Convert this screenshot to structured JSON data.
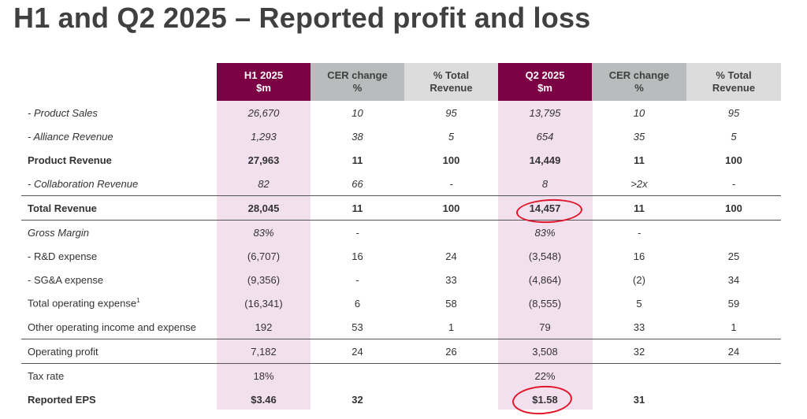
{
  "title": "H1 and Q2 2025 – Reported profit and loss",
  "columns": {
    "h1": "H1 2025\n$m",
    "h1_cer": "CER change\n%",
    "h1_pct": "% Total\nRevenue",
    "q2": "Q2 2025\n$m",
    "q2_cer": "CER change\n%",
    "q2_pct": "% Total\nRevenue"
  },
  "rows": [
    {
      "label": "- Product Sales",
      "h1": "26,670",
      "h1_cer": "10",
      "h1_pct": "95",
      "q2": "13,795",
      "q2_cer": "10",
      "q2_pct": "95"
    },
    {
      "label": "- Alliance Revenue",
      "h1": "1,293",
      "h1_cer": "38",
      "h1_pct": "5",
      "q2": "654",
      "q2_cer": "35",
      "q2_pct": "5"
    },
    {
      "label": "Product Revenue",
      "h1": "27,963",
      "h1_cer": "11",
      "h1_pct": "100",
      "q2": "14,449",
      "q2_cer": "11",
      "q2_pct": "100"
    },
    {
      "label": "- Collaboration Revenue",
      "h1": "82",
      "h1_cer": "66",
      "h1_pct": "-",
      "q2": "8",
      "q2_cer": ">2x",
      "q2_pct": "-"
    },
    {
      "label": "Total Revenue",
      "h1": "28,045",
      "h1_cer": "11",
      "h1_pct": "100",
      "q2": "14,457",
      "q2_cer": "11",
      "q2_pct": "100"
    },
    {
      "label": "Gross Margin",
      "h1": "83%",
      "h1_cer": "-",
      "h1_pct": "",
      "q2": "83%",
      "q2_cer": "-",
      "q2_pct": ""
    },
    {
      "label": "- R&D expense",
      "h1": "(6,707)",
      "h1_cer": "16",
      "h1_pct": "24",
      "q2": "(3,548)",
      "q2_cer": "16",
      "q2_pct": "25"
    },
    {
      "label": "- SG&A expense",
      "h1": "(9,356)",
      "h1_cer": "-",
      "h1_pct": "33",
      "q2": "(4,864)",
      "q2_cer": "(2)",
      "q2_pct": "34"
    },
    {
      "label": "Total operating expense",
      "sup": "1",
      "h1": "(16,341)",
      "h1_cer": "6",
      "h1_pct": "58",
      "q2": "(8,555)",
      "q2_cer": "5",
      "q2_pct": "59"
    },
    {
      "label": "Other operating income and expense",
      "h1": "192",
      "h1_cer": "53",
      "h1_pct": "1",
      "q2": "79",
      "q2_cer": "33",
      "q2_pct": "1"
    },
    {
      "label": "Operating profit",
      "h1": "7,182",
      "h1_cer": "24",
      "h1_pct": "26",
      "q2": "3,508",
      "q2_cer": "32",
      "q2_pct": "24"
    },
    {
      "label": "Tax rate",
      "h1": "18%",
      "h1_cer": "",
      "h1_pct": "",
      "q2": "22%",
      "q2_cer": "",
      "q2_pct": ""
    },
    {
      "label": "Reported EPS",
      "h1": "$3.46",
      "h1_cer": "32",
      "h1_pct": "",
      "q2": "$1.58",
      "q2_cer": "31",
      "q2_pct": ""
    }
  ],
  "colors": {
    "header_maroon": "#7b0044",
    "header_gray": "#b9bcbc",
    "header_light_gray": "#dcdcdc",
    "column_highlight_pink": "#f3e0ee",
    "annotation_red": "#e0162b"
  }
}
